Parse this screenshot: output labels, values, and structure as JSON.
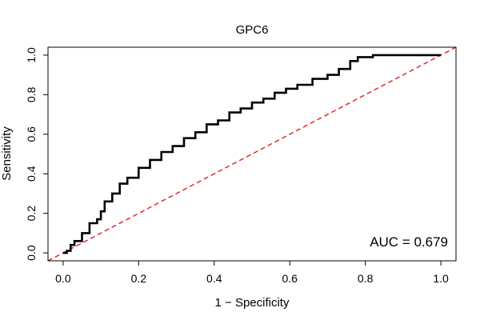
{
  "chart_data": {
    "type": "line",
    "title": "GPC6",
    "xlabel": "1 − Specificity",
    "ylabel": "Sensitivity",
    "xlim": [
      -0.04,
      1.04
    ],
    "ylim": [
      -0.04,
      1.04
    ],
    "x_ticks": [
      0.0,
      0.2,
      0.4,
      0.6,
      0.8,
      1.0
    ],
    "x_tick_labels": [
      "0.0",
      "0.2",
      "0.4",
      "0.6",
      "0.8",
      "1.0"
    ],
    "y_ticks": [
      0.0,
      0.2,
      0.4,
      0.6,
      0.8,
      1.0
    ],
    "y_tick_labels": [
      "0.0",
      "0.2",
      "0.4",
      "0.6",
      "0.8",
      "1.0"
    ],
    "grid": false,
    "annotation": "AUC = 0.679",
    "series": [
      {
        "type": "roc",
        "color": "#000000",
        "x": [
          0.0,
          0.01,
          0.02,
          0.03,
          0.05,
          0.07,
          0.09,
          0.1,
          0.11,
          0.13,
          0.15,
          0.17,
          0.2,
          0.23,
          0.26,
          0.29,
          0.32,
          0.35,
          0.38,
          0.41,
          0.44,
          0.47,
          0.5,
          0.53,
          0.56,
          0.59,
          0.62,
          0.66,
          0.7,
          0.73,
          0.76,
          0.78,
          0.82,
          0.9,
          1.0
        ],
        "y": [
          0.0,
          0.01,
          0.04,
          0.06,
          0.1,
          0.15,
          0.17,
          0.21,
          0.26,
          0.3,
          0.35,
          0.38,
          0.43,
          0.47,
          0.51,
          0.54,
          0.58,
          0.61,
          0.65,
          0.67,
          0.71,
          0.73,
          0.76,
          0.78,
          0.81,
          0.83,
          0.85,
          0.88,
          0.9,
          0.93,
          0.97,
          0.99,
          1.0,
          1.0,
          1.0
        ]
      },
      {
        "type": "reference-diagonal",
        "color": "#e41a1c",
        "x": [
          -0.04,
          1.04
        ],
        "y": [
          -0.04,
          1.04
        ]
      }
    ]
  }
}
